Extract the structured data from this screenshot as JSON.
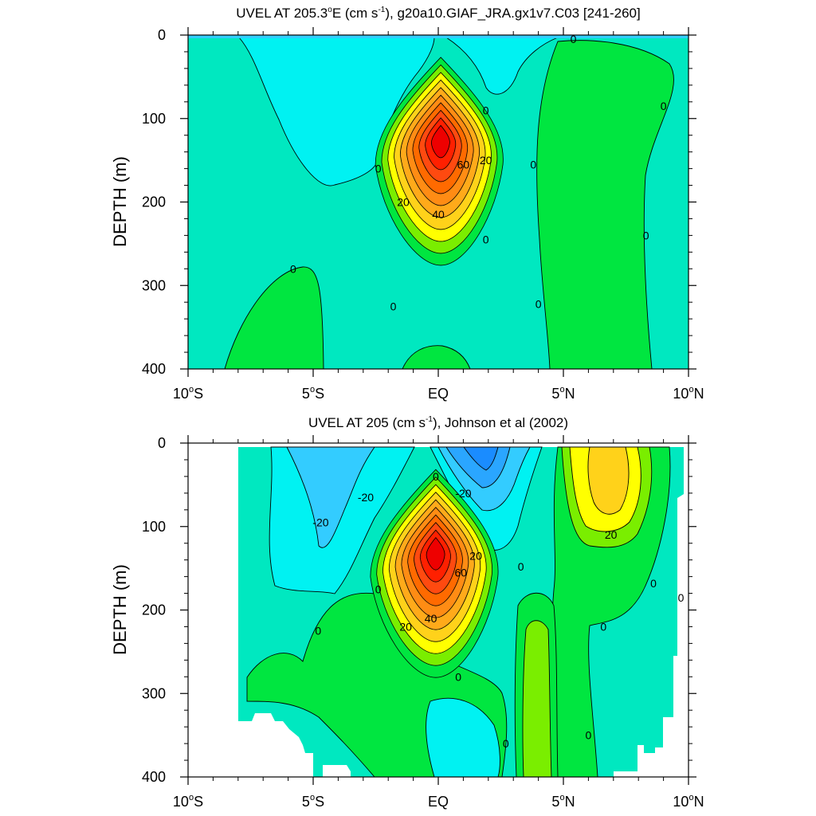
{
  "chart_data": [
    {
      "type": "contour",
      "title": "UVEL AT 205.3°E (cm s-1), g20a10.GIAF_JRA.gx1v7.C03 [241-260]",
      "title_parts": {
        "pre": "UVEL AT 205.3",
        "deg": "o",
        "mid": "E (cm s",
        "sup": "-1",
        "post": "), g20a10.GIAF_JRA.gx1v7.C03 [241-260]"
      },
      "ylabel": "DEPTH (m)",
      "xlabel": "",
      "xlim": [
        -10,
        10
      ],
      "ylim": [
        400,
        0
      ],
      "x_ticks": [
        {
          "value": -10,
          "num": "10",
          "deg": "o",
          "hemi": "S"
        },
        {
          "value": -5,
          "num": "5",
          "deg": "o",
          "hemi": "S"
        },
        {
          "value": 0,
          "num": "EQ",
          "deg": "",
          "hemi": ""
        },
        {
          "value": 5,
          "num": "5",
          "deg": "o",
          "hemi": "N"
        },
        {
          "value": 10,
          "num": "10",
          "deg": "o",
          "hemi": "N"
        }
      ],
      "y_ticks": [
        0,
        100,
        200,
        300,
        400
      ],
      "contour_interval": 10,
      "core": {
        "lat": 0.1,
        "depth": 125,
        "max_speed": 100
      },
      "contour_labels": [
        {
          "lat": 5.4,
          "depth": 5,
          "text": "0"
        },
        {
          "lat": 9.0,
          "depth": 85,
          "text": "0"
        },
        {
          "lat": 1.9,
          "depth": 90,
          "text": "0"
        },
        {
          "lat": -2.4,
          "depth": 160,
          "text": "0"
        },
        {
          "lat": 3.8,
          "depth": 155,
          "text": "0"
        },
        {
          "lat": 1.9,
          "depth": 150,
          "text": "20"
        },
        {
          "lat": 1.0,
          "depth": 155,
          "text": "60"
        },
        {
          "lat": -1.4,
          "depth": 200,
          "text": "20"
        },
        {
          "lat": 0.0,
          "depth": 215,
          "text": "40"
        },
        {
          "lat": 1.9,
          "depth": 245,
          "text": "0"
        },
        {
          "lat": 8.3,
          "depth": 240,
          "text": "0"
        },
        {
          "lat": -5.8,
          "depth": 280,
          "text": "0"
        },
        {
          "lat": -1.8,
          "depth": 325,
          "text": "0"
        },
        {
          "lat": 4.0,
          "depth": 322,
          "text": "0"
        }
      ]
    },
    {
      "type": "contour",
      "title": "UVEL AT 205 (cm s-1), Johnson et al (2002)",
      "title_parts": {
        "pre": "UVEL AT 205",
        "deg": "",
        "mid": " (cm s",
        "sup": "-1",
        "post": "), Johnson et al (2002)"
      },
      "ylabel": "DEPTH (m)",
      "xlabel": "",
      "xlim": [
        -10,
        10
      ],
      "ylim": [
        400,
        0
      ],
      "x_ticks": [
        {
          "value": -10,
          "num": "10",
          "deg": "o",
          "hemi": "S"
        },
        {
          "value": -5,
          "num": "5",
          "deg": "o",
          "hemi": "S"
        },
        {
          "value": 0,
          "num": "EQ",
          "deg": "",
          "hemi": ""
        },
        {
          "value": 5,
          "num": "5",
          "deg": "o",
          "hemi": "N"
        },
        {
          "value": 10,
          "num": "10",
          "deg": "o",
          "hemi": "N"
        }
      ],
      "y_ticks": [
        0,
        100,
        200,
        300,
        400
      ],
      "contour_interval": 10,
      "data_lat_range": [
        -8,
        9.8
      ],
      "core": {
        "lat": -0.1,
        "depth": 130,
        "max_speed": 100
      },
      "contour_labels": [
        {
          "lat": -2.9,
          "depth": 65,
          "text": "-20"
        },
        {
          "lat": -4.7,
          "depth": 95,
          "text": "-20"
        },
        {
          "lat": -0.1,
          "depth": 40,
          "text": "0"
        },
        {
          "lat": 1.0,
          "depth": 60,
          "text": "-20"
        },
        {
          "lat": 1.5,
          "depth": 135,
          "text": "20"
        },
        {
          "lat": 0.9,
          "depth": 155,
          "text": "60"
        },
        {
          "lat": 3.3,
          "depth": 148,
          "text": "0"
        },
        {
          "lat": -2.4,
          "depth": 175,
          "text": "0"
        },
        {
          "lat": -1.3,
          "depth": 220,
          "text": "20"
        },
        {
          "lat": -0.3,
          "depth": 210,
          "text": "40"
        },
        {
          "lat": 6.9,
          "depth": 110,
          "text": "20"
        },
        {
          "lat": 8.6,
          "depth": 168,
          "text": "0"
        },
        {
          "lat": 9.7,
          "depth": 185,
          "text": "0"
        },
        {
          "lat": 6.6,
          "depth": 220,
          "text": "0"
        },
        {
          "lat": -4.8,
          "depth": 225,
          "text": "0"
        },
        {
          "lat": 0.8,
          "depth": 280,
          "text": "0"
        },
        {
          "lat": 2.7,
          "depth": 360,
          "text": "0"
        },
        {
          "lat": 6.0,
          "depth": 350,
          "text": "0"
        }
      ]
    }
  ],
  "colors": {
    "minus40": "#1a8cff",
    "minus30": "#2aa6ff",
    "minus20": "#33ccff",
    "minus10": "#00f2f2",
    "zero": "#00e8c0",
    "plus10": "#00e640",
    "plus20": "#7aee00",
    "plus30": "#ffff00",
    "plus40": "#ffd21a",
    "plus50": "#ffaa1a",
    "plus60": "#ff8c14",
    "plus70": "#ff6a00",
    "plus80": "#ff4a10",
    "plus90": "#ff2000",
    "plus100": "#ee0000"
  }
}
